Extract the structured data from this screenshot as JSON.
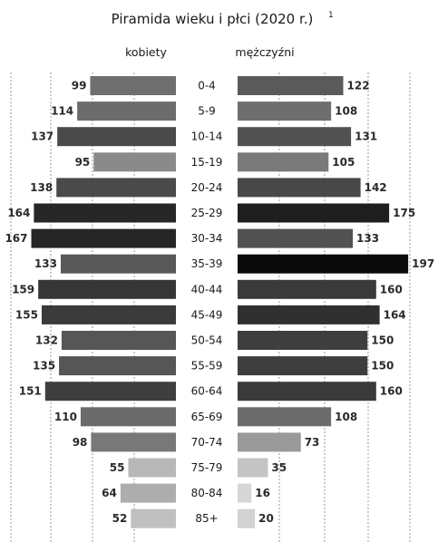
{
  "chart_data": {
    "type": "bar",
    "title": "Piramida wieku i płci (2020 r.)",
    "title_superscript": "1",
    "categories": [
      "0-4",
      "5-9",
      "10-14",
      "15-19",
      "20-24",
      "25-29",
      "30-34",
      "35-39",
      "40-44",
      "45-49",
      "50-54",
      "55-59",
      "60-64",
      "65-69",
      "70-74",
      "75-79",
      "80-84",
      "85+"
    ],
    "series": [
      {
        "name": "kobiety",
        "side": "left",
        "values": [
          99,
          114,
          137,
          95,
          138,
          164,
          167,
          133,
          159,
          155,
          132,
          135,
          151,
          110,
          98,
          55,
          64,
          52
        ],
        "colors": [
          "#6f6f6f",
          "#6c6c6c",
          "#4a4a4a",
          "#8a8a8a",
          "#4a4a4a",
          "#262626",
          "#262626",
          "#585858",
          "#363636",
          "#3a3a3a",
          "#565656",
          "#565656",
          "#3e3e3e",
          "#6a6a6a",
          "#787878",
          "#b8b8b8",
          "#adadad",
          "#c0c0c0"
        ]
      },
      {
        "name": "mężczyźni",
        "side": "right",
        "values": [
          122,
          108,
          131,
          105,
          142,
          175,
          133,
          197,
          160,
          164,
          150,
          150,
          160,
          108,
          73,
          35,
          16,
          20
        ],
        "colors": [
          "#5a5a5a",
          "#6e6e6e",
          "#525252",
          "#7a7a7a",
          "#484848",
          "#1e1e1e",
          "#525252",
          "#0a0a0a",
          "#3a3a3a",
          "#303030",
          "#3e3e3e",
          "#3e3e3e",
          "#3a3a3a",
          "#6c6c6c",
          "#9a9a9a",
          "#c4c4c4",
          "#d6d6d6",
          "#d2d2d2"
        ]
      }
    ],
    "grid": true,
    "legend": "top"
  }
}
